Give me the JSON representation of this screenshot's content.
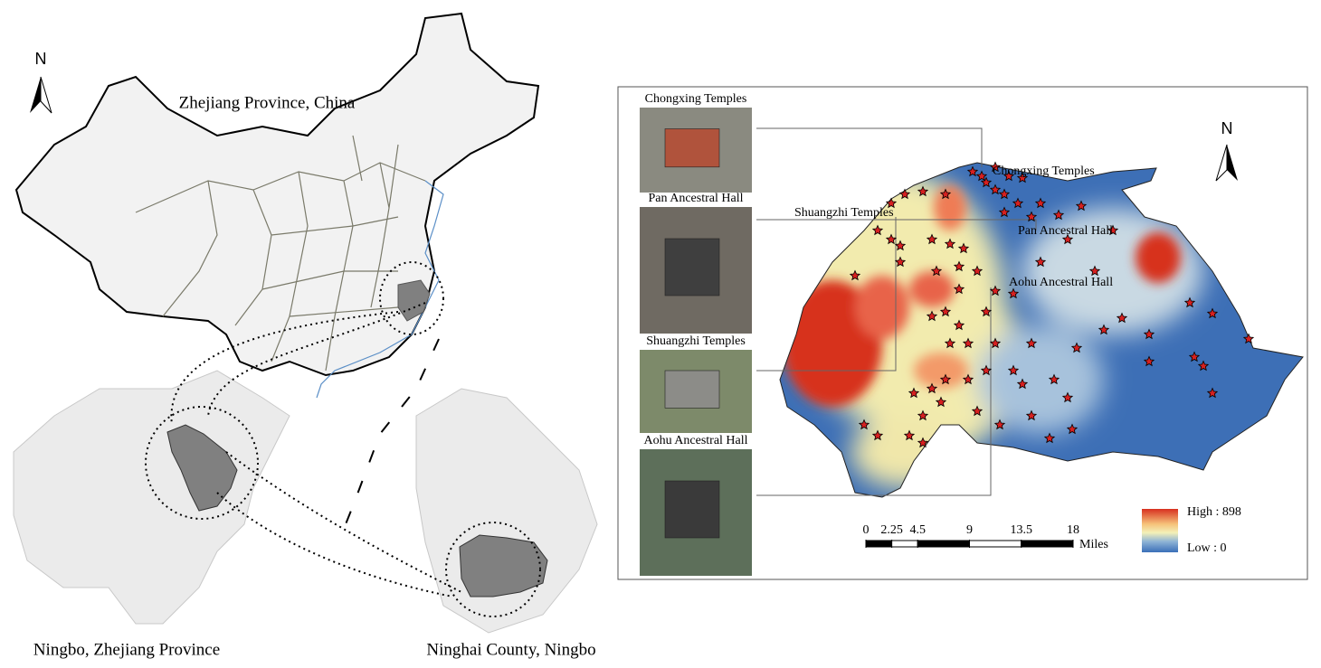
{
  "left_map": {
    "north": "N",
    "title": "Zhejiang Province, China",
    "captions": [
      "Ningbo, Zhejiang Province",
      "Ninghai County, Ningbo"
    ]
  },
  "right_map": {
    "north": "N",
    "photos": [
      "Chongxing Temples",
      "Pan Ancestral Hall",
      "Shuangzhi Temples",
      "Aohu Ancestral Hall"
    ],
    "site_labels": [
      "Chongxing Temples",
      "Shuangzhi Temples",
      "Pan Ancestral Hall",
      "Aohu Ancestral Hall"
    ],
    "scale_bar": {
      "ticks": [
        0,
        2.25,
        4.5,
        9,
        13.5,
        18
      ],
      "unit": "Miles"
    },
    "legend": {
      "high": "High : 898",
      "low": "Low : 0"
    }
  }
}
